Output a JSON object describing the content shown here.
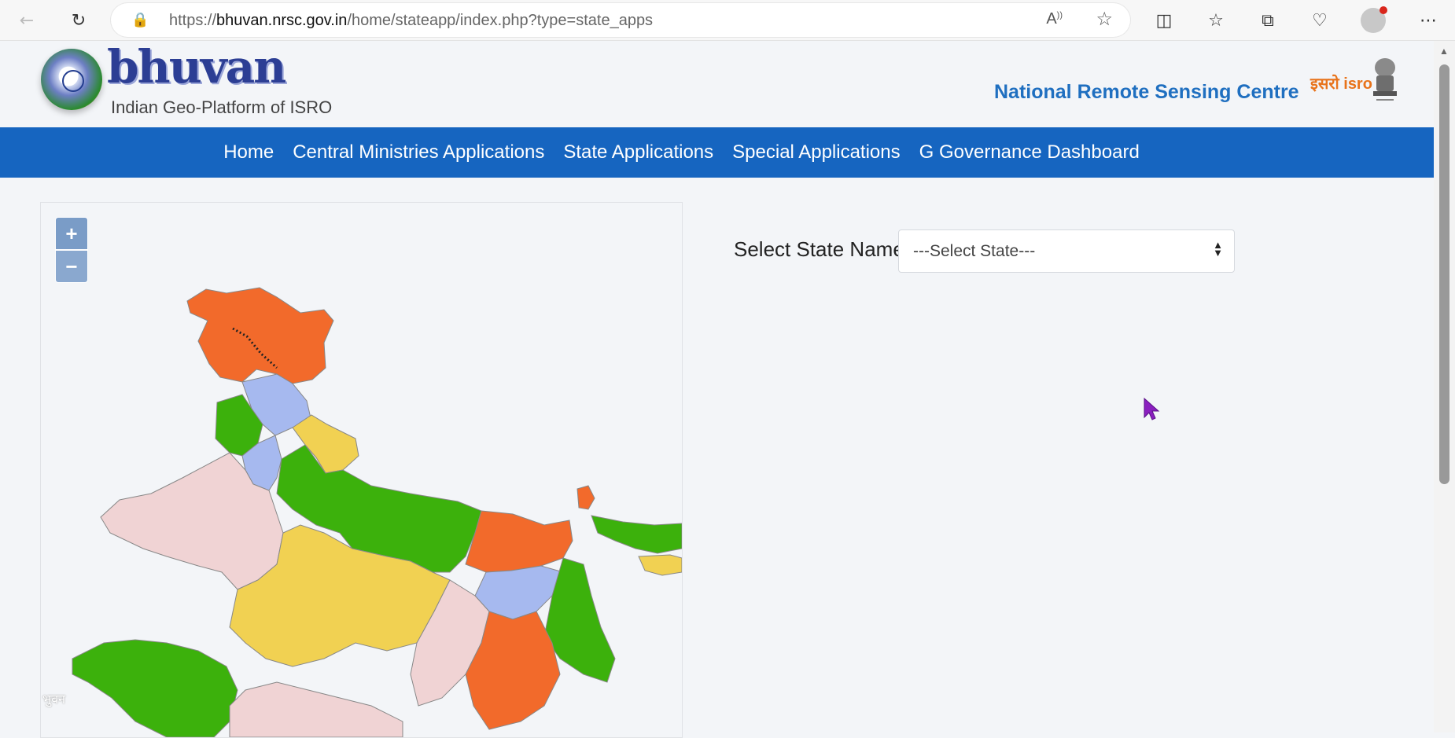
{
  "browser": {
    "url_host": "bhuvan.nrsc.gov.in",
    "url_prefix": "https://",
    "url_path": "/home/stateapp/index.php?type=state_apps"
  },
  "header": {
    "logo_word": "bhuvan",
    "logo_subtitle": "Indian Geo-Platform of ISRO",
    "org_name": "National Remote Sensing Centre",
    "org_mark": "इसरो isro"
  },
  "nav": {
    "items": [
      {
        "label": "Home"
      },
      {
        "label": "Central Ministries Applications"
      },
      {
        "label": "State Applications"
      },
      {
        "label": "Special Applications"
      },
      {
        "label": "G Governance Dashboard"
      }
    ]
  },
  "map": {
    "zoom_in": "+",
    "zoom_out": "−",
    "watermark": "भुवन",
    "colors": {
      "orange": "#f26a2b",
      "blue": "#a6b9ef",
      "green": "#3cb10c",
      "yellow": "#f1d152",
      "pink": "#f0d3d4"
    }
  },
  "state_select": {
    "label": "Select State Name:",
    "selected": "---Select State---"
  }
}
